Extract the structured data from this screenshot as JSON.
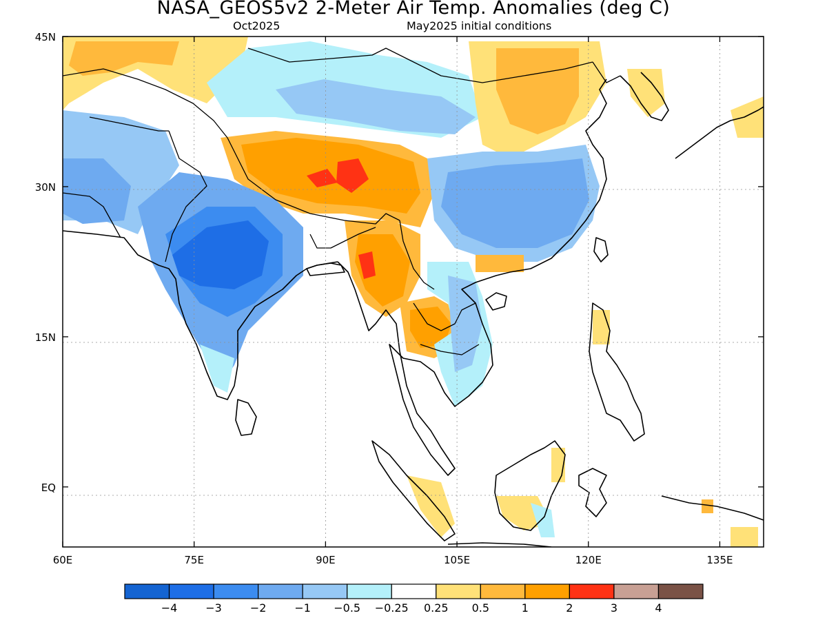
{
  "header": {
    "title": "NASA_GEOS5v2 2-Meter Air Temp. Anomalies (deg C)",
    "valid_month": "Oct2025",
    "initial_conditions": "May2025 initial conditions"
  },
  "map": {
    "lon_range": [
      60,
      140
    ],
    "lat_range": [
      -6,
      45
    ],
    "lon_ticks": [
      {
        "value": 60,
        "label": "60E"
      },
      {
        "value": 75,
        "label": "75E"
      },
      {
        "value": 90,
        "label": "90E"
      },
      {
        "value": 105,
        "label": "105E"
      },
      {
        "value": 120,
        "label": "120E"
      },
      {
        "value": 135,
        "label": "135E"
      }
    ],
    "lat_ticks": [
      {
        "value": 45,
        "label": "45N"
      },
      {
        "value": 30,
        "label": "30N"
      },
      {
        "value": 15,
        "label": "15N"
      },
      {
        "value": 0,
        "label": "EQ"
      }
    ]
  },
  "colorbar": {
    "colors": [
      "#1464d2",
      "#1e6ee6",
      "#3c8cf0",
      "#6eaaf0",
      "#96c8f5",
      "#b4f0fa",
      "#ffffff",
      "#ffe178",
      "#ffb93c",
      "#ffa000",
      "#ff3214",
      "#c8a094",
      "#7a5246"
    ],
    "labels": [
      "-4",
      "-3",
      "-2",
      "-1",
      "-0.5",
      "-0.25",
      "0.25",
      "0.5",
      "1",
      "2",
      "3",
      "4"
    ]
  }
}
